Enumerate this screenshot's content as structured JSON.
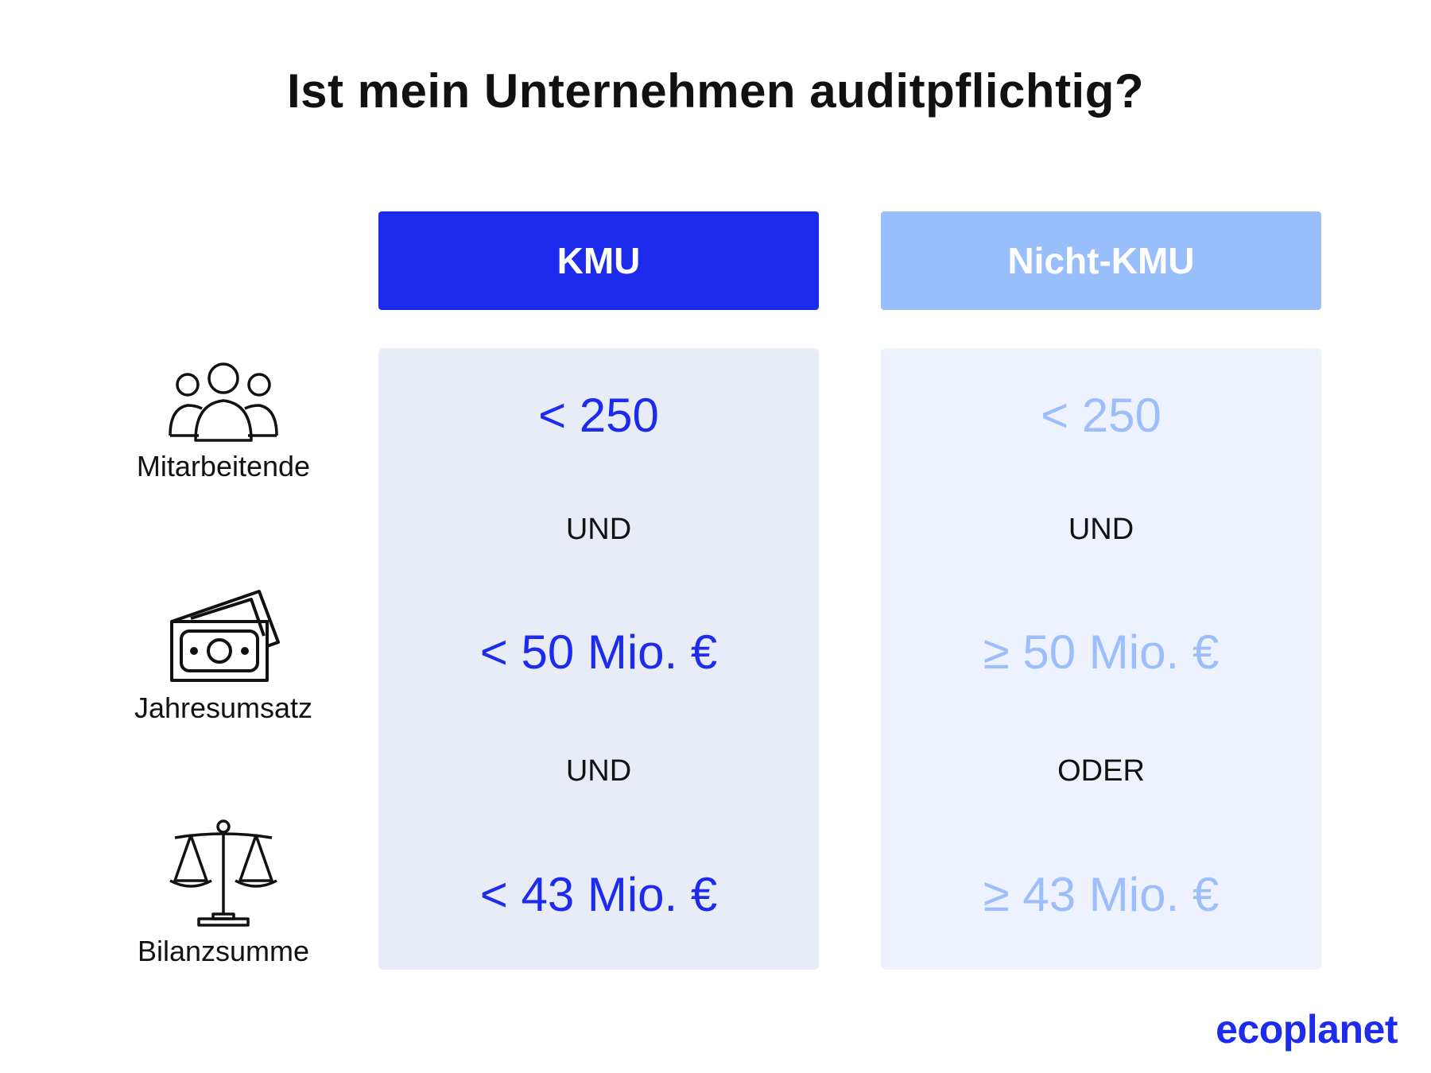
{
  "title": "Ist mein Unternehmen auditpflichtig?",
  "colors": {
    "kmu_header": "#1d2cec",
    "nicht_kmu_header": "#98befc",
    "kmu_panel": "#e8ecf6",
    "nicht_kmu_panel": "#edf2fe",
    "kmu_value": "#1d2cec",
    "nicht_kmu_value": "#9cbffb"
  },
  "columns": [
    {
      "header": "KMU",
      "values": [
        "< 250",
        "< 50 Mio. €",
        "< 43 Mio. €"
      ],
      "connectors": [
        "UND",
        "UND"
      ]
    },
    {
      "header": "Nicht-KMU",
      "values": [
        "< 250",
        "≥ 50 Mio. €",
        "≥ 43 Mio. €"
      ],
      "connectors": [
        "UND",
        "ODER"
      ]
    }
  ],
  "row_labels": [
    {
      "label": "Mitarbeitende",
      "icon": "people-icon"
    },
    {
      "label": "Jahresumsatz",
      "icon": "money-icon"
    },
    {
      "label": "Bilanzsumme",
      "icon": "scale-icon"
    }
  ],
  "logo": "ecoplanet"
}
